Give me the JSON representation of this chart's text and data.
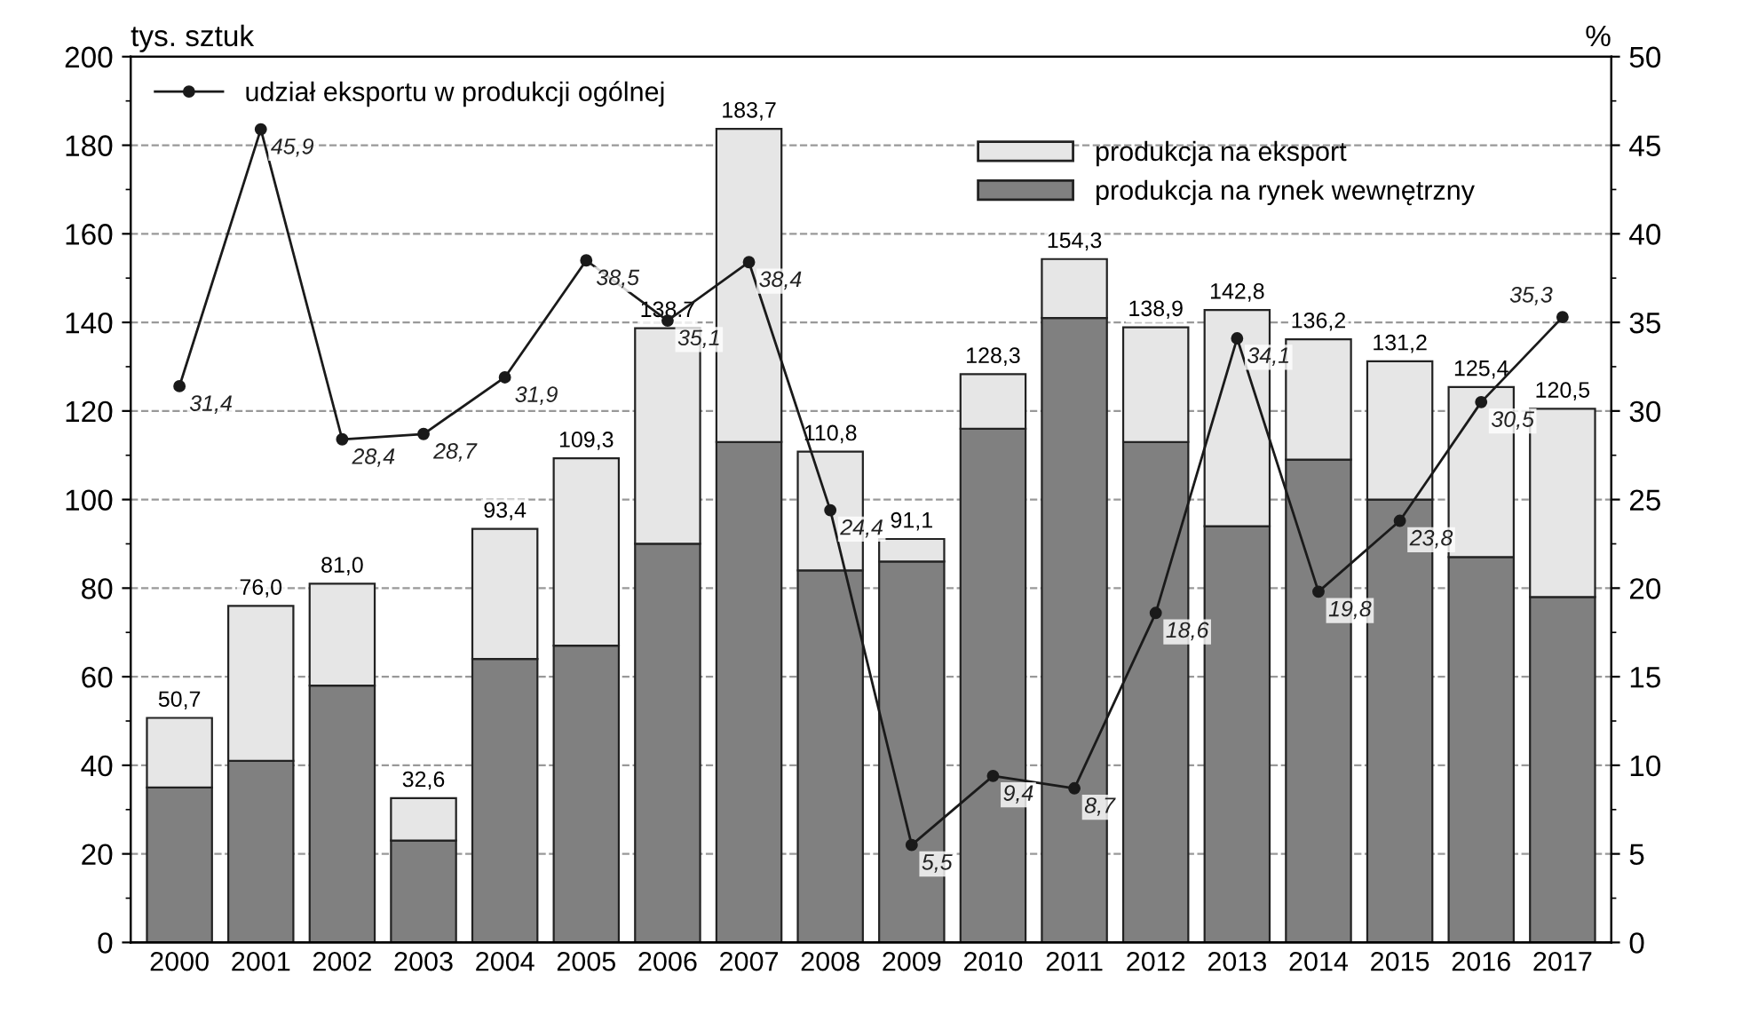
{
  "chart_data": {
    "type": "bar",
    "stacked": true,
    "categories": [
      "2000",
      "2001",
      "2002",
      "2003",
      "2004",
      "2005",
      "2006",
      "2007",
      "2008",
      "2009",
      "2010",
      "2011",
      "2012",
      "2013",
      "2014",
      "2015",
      "2016",
      "2017"
    ],
    "series": [
      {
        "name": "produkcja na rynek wewnętrzny",
        "color": "#808080",
        "values": [
          35,
          41,
          58,
          23,
          64,
          67,
          90,
          113,
          84,
          86,
          116,
          141,
          113,
          94,
          109,
          100,
          87,
          78
        ]
      },
      {
        "name": "produkcja na eksport",
        "color": "#e6e6e6",
        "values": [
          15.7,
          35.0,
          23.0,
          9.6,
          29.4,
          42.3,
          48.7,
          70.7,
          26.8,
          5.1,
          12.3,
          13.3,
          25.9,
          48.8,
          27.2,
          31.2,
          38.4,
          42.5
        ]
      },
      {
        "name": "udział eksportu w produkcji ogólnej",
        "type": "line",
        "axis": "y2",
        "color": "#1a1a1a",
        "marker": "circle",
        "line_style": "solid",
        "values": [
          31.4,
          45.9,
          28.4,
          28.7,
          31.9,
          38.5,
          35.1,
          38.4,
          24.4,
          5.5,
          9.4,
          8.7,
          18.6,
          34.1,
          19.8,
          23.8,
          30.5,
          35.3
        ],
        "value_labels": [
          "31,4",
          "45,9",
          "28,4",
          "28,7",
          "31,9",
          "38,5",
          "35,1",
          "38,4",
          "24,4",
          "5,5",
          "9,4",
          "8,7",
          "18,6",
          "34,1",
          "19,8",
          "23,8",
          "30,5",
          "35,3"
        ]
      }
    ],
    "totals": [
      "50,7",
      "76,0",
      "81,0",
      "32,6",
      "93,4",
      "109,3",
      "138.7",
      "183,7",
      "110,8",
      "91,1",
      "128,3",
      "154,3",
      "138,9",
      "142,8",
      "136,2",
      "131,2",
      "125,4",
      "120,5"
    ],
    "ylabel": "tys. sztuk",
    "y2label": "%",
    "ylim": [
      0,
      200
    ],
    "yticks": [
      0,
      20,
      40,
      60,
      80,
      100,
      120,
      140,
      160,
      180,
      200
    ],
    "y2lim": [
      0,
      50
    ],
    "y2ticks": [
      0,
      5,
      10,
      15,
      20,
      25,
      30,
      35,
      40,
      45,
      50
    ],
    "grid": "y",
    "legend": "top"
  }
}
